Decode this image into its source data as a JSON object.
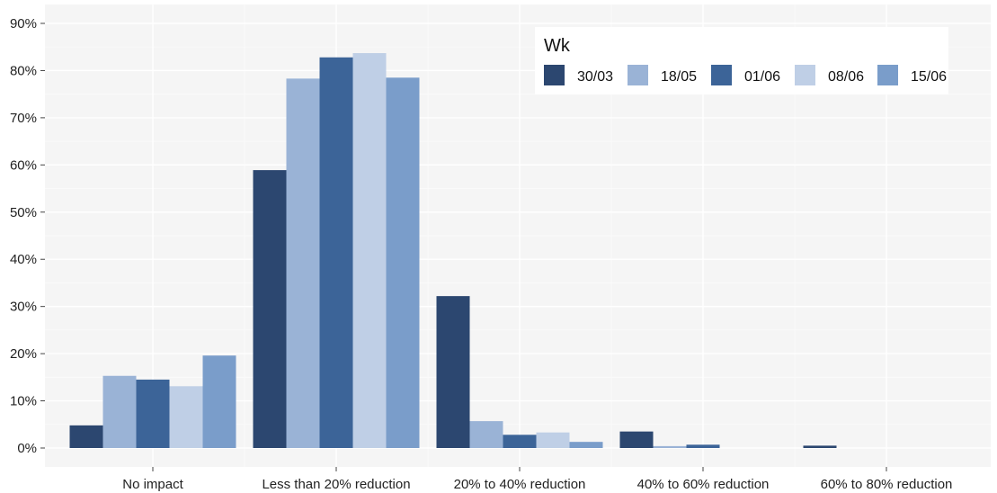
{
  "chart_data": {
    "type": "bar",
    "title": "",
    "xlabel": "",
    "ylabel": "",
    "ylim": [
      0,
      92
    ],
    "yticks": [
      0,
      10,
      20,
      30,
      40,
      50,
      60,
      70,
      80,
      90
    ],
    "ytick_labels": [
      "0%",
      "10%",
      "20%",
      "30%",
      "40%",
      "50%",
      "60%",
      "70%",
      "80%",
      "90%"
    ],
    "grid": true,
    "legend_position": "top-right",
    "legend_title": "Wk",
    "categories": [
      "No impact",
      "Less than 20% reduction",
      "20% to 40% reduction",
      "40% to 60% reduction",
      "60% to 80% reduction"
    ],
    "series": [
      {
        "name": "30/03",
        "color": "#2c4770",
        "values": [
          4.8,
          58.9,
          32.2,
          3.5,
          0.5
        ]
      },
      {
        "name": "18/05",
        "color": "#9ab3d6",
        "values": [
          15.3,
          78.3,
          5.7,
          0.4,
          0
        ]
      },
      {
        "name": "01/06",
        "color": "#3c6498",
        "values": [
          14.5,
          82.8,
          2.8,
          0.7,
          0
        ]
      },
      {
        "name": "08/06",
        "color": "#bfcfe6",
        "values": [
          13.1,
          83.7,
          3.3,
          0,
          0
        ]
      },
      {
        "name": "15/06",
        "color": "#7a9dca",
        "values": [
          19.6,
          78.5,
          1.3,
          0,
          0
        ]
      }
    ]
  }
}
